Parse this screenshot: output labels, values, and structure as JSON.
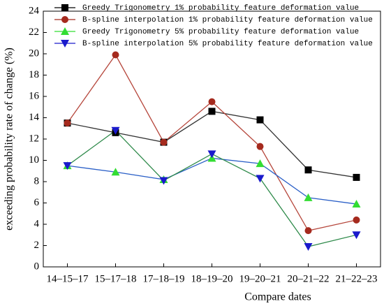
{
  "chart_data": {
    "type": "line",
    "x_label": "Compare dates",
    "y_label": "exceeding probability rate of change (%)",
    "categories": [
      "14–15–17",
      "15–17–18",
      "17–18–19",
      "18–19–20",
      "19–20–21",
      "20–21–22",
      "21–22–23"
    ],
    "series": [
      {
        "name": "Greedy Trigonometry 1% probability feature deformation value",
        "color": "#000000",
        "line_color": "#333333",
        "marker": "square",
        "values": [
          13.5,
          12.6,
          11.7,
          14.6,
          13.8,
          9.1,
          8.4
        ]
      },
      {
        "name": "B-spline interpolation 1% probability feature deformation value",
        "color": "#a52a1e",
        "line_color": "#b5453a",
        "marker": "circle",
        "values": [
          13.5,
          19.9,
          11.7,
          15.5,
          11.3,
          3.4,
          4.4
        ]
      },
      {
        "name": "Greedy Trigonometry 5% probability feature deformation value",
        "color": "#33dd33",
        "line_color": "#2a5fc7",
        "marker": "triangle-up",
        "values": [
          9.5,
          8.9,
          8.2,
          10.2,
          9.7,
          6.5,
          5.9
        ]
      },
      {
        "name": "B-spline interpolation 5% probability feature deformation value",
        "color": "#1a1acc",
        "line_color": "#2e8a4a",
        "marker": "triangle-down",
        "values": [
          9.5,
          12.8,
          8.1,
          10.6,
          8.3,
          1.9,
          3.0
        ]
      }
    ],
    "ylim": [
      0,
      24
    ],
    "yticks": [
      0,
      2,
      4,
      6,
      8,
      10,
      12,
      14,
      16,
      18,
      20,
      22,
      24
    ]
  }
}
